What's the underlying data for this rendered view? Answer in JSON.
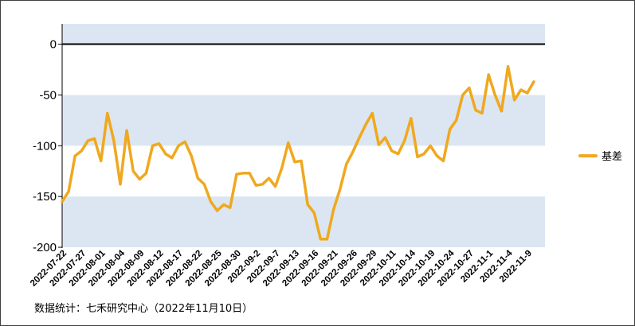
{
  "source_note": "数据统计：七禾研究中心（2022年11月10日）",
  "chart_data": {
    "type": "line",
    "title": "",
    "xlabel": "",
    "ylabel": "",
    "ylim": [
      -200,
      20
    ],
    "yticks": [
      0,
      -50,
      -100,
      -150,
      -200
    ],
    "legend": {
      "position": "right",
      "entries": [
        "基差"
      ]
    },
    "bands": [
      [
        0,
        20
      ],
      [
        -50,
        -100
      ],
      [
        -150,
        -200
      ]
    ],
    "band_color": "#dbe6f2",
    "line_color": "#f0a81e",
    "x_tick_labels": [
      "2022-07-22",
      "2022-07-27",
      "2022-08-01",
      "2022-08-04",
      "2022-08-09",
      "2022-08-12",
      "2022-08-17",
      "2022-08-22",
      "2022-08-25",
      "2022-08-30",
      "2022-09-2",
      "2022-09-7",
      "2022-09-13",
      "2022-09-16",
      "2022-09-21",
      "2022-09-26",
      "2022-09-29",
      "2022-10-11",
      "2022-10-14",
      "2022-10-19",
      "2022-10-24",
      "2022-10-27",
      "2022-11-1",
      "2022-11-4",
      "2022-11-9"
    ],
    "tick_every": 3,
    "series": [
      {
        "name": "基差",
        "values": [
          -155,
          -145,
          -110,
          -105,
          -95,
          -93,
          -115,
          -68,
          -95,
          -138,
          -85,
          -125,
          -133,
          -127,
          -100,
          -98,
          -108,
          -112,
          -100,
          -96,
          -110,
          -132,
          -138,
          -155,
          -164,
          -158,
          -161,
          -128,
          -127,
          -127,
          -139,
          -138,
          -132,
          -140,
          -122,
          -97,
          -116,
          -115,
          -158,
          -166,
          -192,
          -192,
          -163,
          -143,
          -118,
          -106,
          -92,
          -79,
          -68,
          -99,
          -92,
          -105,
          -108,
          -95,
          -73,
          -111,
          -108,
          -100,
          -110,
          -115,
          -84,
          -75,
          -50,
          -43,
          -65,
          -68,
          -30,
          -50,
          -66,
          -22,
          -55,
          -45,
          -48,
          -37
        ]
      }
    ]
  }
}
